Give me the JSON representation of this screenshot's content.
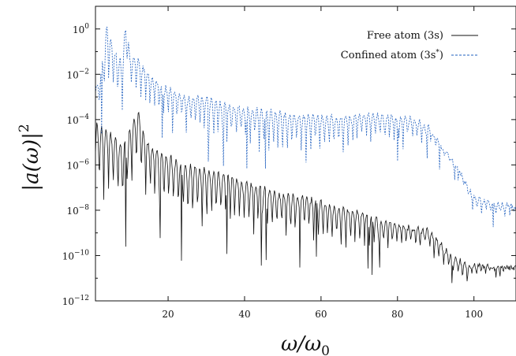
{
  "chart_data": {
    "type": "line",
    "xlabel": "ω/ω0",
    "ylabel": "|a(ω)|2",
    "xlim": [
      1,
      111
    ],
    "ylim_log10": [
      -12,
      1
    ],
    "yscale": "log",
    "x_ticks": [
      20,
      40,
      60,
      80,
      100
    ],
    "x_tick_labels": [
      "20",
      "40",
      "60",
      "80",
      "100"
    ],
    "y_ticks_log10": [
      0,
      -2,
      -4,
      -6,
      -8,
      -10,
      -12
    ],
    "y_tick_labels": [
      {
        "base": "10",
        "exp": "0"
      },
      {
        "base": "10",
        "exp": "−2"
      },
      {
        "base": "10",
        "exp": "−4"
      },
      {
        "base": "10",
        "exp": "−6"
      },
      {
        "base": "10",
        "exp": "−8"
      },
      {
        "base": "10",
        "exp": "−10"
      },
      {
        "base": "10",
        "exp": "−12"
      }
    ],
    "grid": false,
    "legend_position": "top-right",
    "series": [
      {
        "name": "Free atom (3s)",
        "color": "#111111",
        "style": "solid",
        "x": [
          2,
          4,
          6,
          8,
          10,
          12,
          14,
          16,
          18,
          20,
          25,
          30,
          35,
          40,
          45,
          50,
          55,
          60,
          65,
          70,
          75,
          80,
          85,
          88,
          90,
          92,
          94,
          96,
          98,
          100,
          105,
          111
        ],
        "log10_envelope": [
          -4.2,
          -4.5,
          -4.8,
          -5.2,
          -4.5,
          -3.6,
          -4.8,
          -5.3,
          -5.5,
          -5.6,
          -6.0,
          -6.2,
          -6.4,
          -6.8,
          -7.0,
          -7.3,
          -7.4,
          -7.6,
          -7.9,
          -8.1,
          -8.4,
          -8.6,
          -8.8,
          -8.9,
          -9.2,
          -9.6,
          -10.0,
          -10.2,
          -10.4,
          -10.4,
          -10.5,
          -10.5
        ],
        "log10_dips": [
          -9.0,
          -8.5,
          -8.5,
          -9.5,
          -8.5,
          -7.5,
          -8.5,
          -9.0,
          -9.0,
          -9.0,
          -10.0,
          -9.5,
          -9.5,
          -9.5,
          -10.0,
          -10.0,
          -10.0,
          -10.0,
          -10.5,
          -10.0,
          -10.5,
          -10.0,
          -10.0,
          -10.0,
          -10.5,
          -10.8,
          -11.0,
          -11.2,
          -11.8,
          -11.0,
          -10.8,
          -10.7
        ]
      },
      {
        "name": "Confined atom (3s*)",
        "color": "#1f5fbf",
        "style": "dashed",
        "x": [
          2,
          4,
          6,
          8,
          9,
          10,
          12,
          14,
          16,
          18,
          20,
          25,
          30,
          35,
          40,
          45,
          50,
          55,
          60,
          65,
          70,
          75,
          80,
          85,
          88,
          90,
          92,
          94,
          96,
          98,
          100,
          105,
          111
        ],
        "log10_envelope": [
          -2.5,
          0.2,
          -1.0,
          -1.5,
          0.5,
          -1.2,
          -1.3,
          -1.8,
          -2.2,
          -2.4,
          -2.6,
          -3.0,
          -3.0,
          -3.3,
          -3.5,
          -3.6,
          -3.7,
          -3.8,
          -3.8,
          -3.9,
          -3.8,
          -3.8,
          -3.9,
          -4.0,
          -4.3,
          -4.8,
          -5.3,
          -5.7,
          -6.2,
          -6.9,
          -7.4,
          -7.7,
          -7.8
        ],
        "log10_dips": [
          -4.0,
          -4.5,
          -4.0,
          -4.5,
          -3.0,
          -3.5,
          -3.8,
          -4.0,
          -4.2,
          -4.5,
          -5.0,
          -5.0,
          -5.5,
          -5.5,
          -5.5,
          -6.0,
          -6.5,
          -6.0,
          -6.0,
          -6.0,
          -5.5,
          -5.5,
          -5.5,
          -5.3,
          -5.3,
          -5.5,
          -5.8,
          -6.0,
          -6.5,
          -7.3,
          -8.2,
          -8.5,
          -8.3
        ]
      }
    ]
  }
}
